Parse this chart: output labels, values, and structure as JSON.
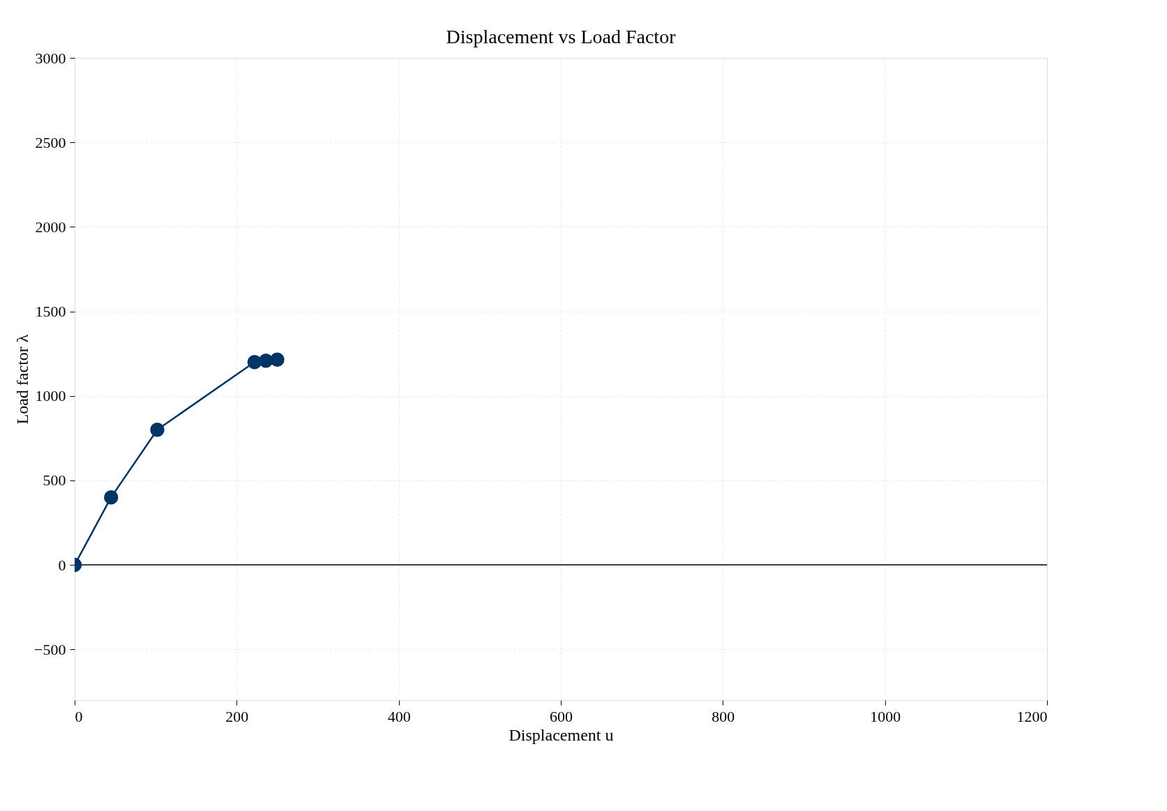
{
  "chart_data": {
    "type": "line",
    "title": "Displacement vs Load Factor",
    "xlabel": "Displacement u",
    "ylabel": "Load factor λ",
    "x": [
      0,
      45,
      102,
      222,
      236,
      250
    ],
    "series": [
      {
        "color": "#003366",
        "values": [
          0,
          400,
          800,
          1200,
          1208,
          1215
        ]
      }
    ],
    "marker": "circle",
    "line_style": "solid",
    "xlim": [
      0,
      1200
    ],
    "xticks": [
      0,
      200,
      400,
      600,
      800,
      1000,
      1200
    ],
    "ylim": [
      -800,
      3000
    ],
    "yticks": [
      -500,
      0,
      500,
      1000,
      1500,
      2000,
      2500,
      3000
    ],
    "grid": true,
    "ref_lines": [
      {
        "axis": "y",
        "value": 0,
        "color": "#000000",
        "line_style": "solid"
      }
    ]
  }
}
